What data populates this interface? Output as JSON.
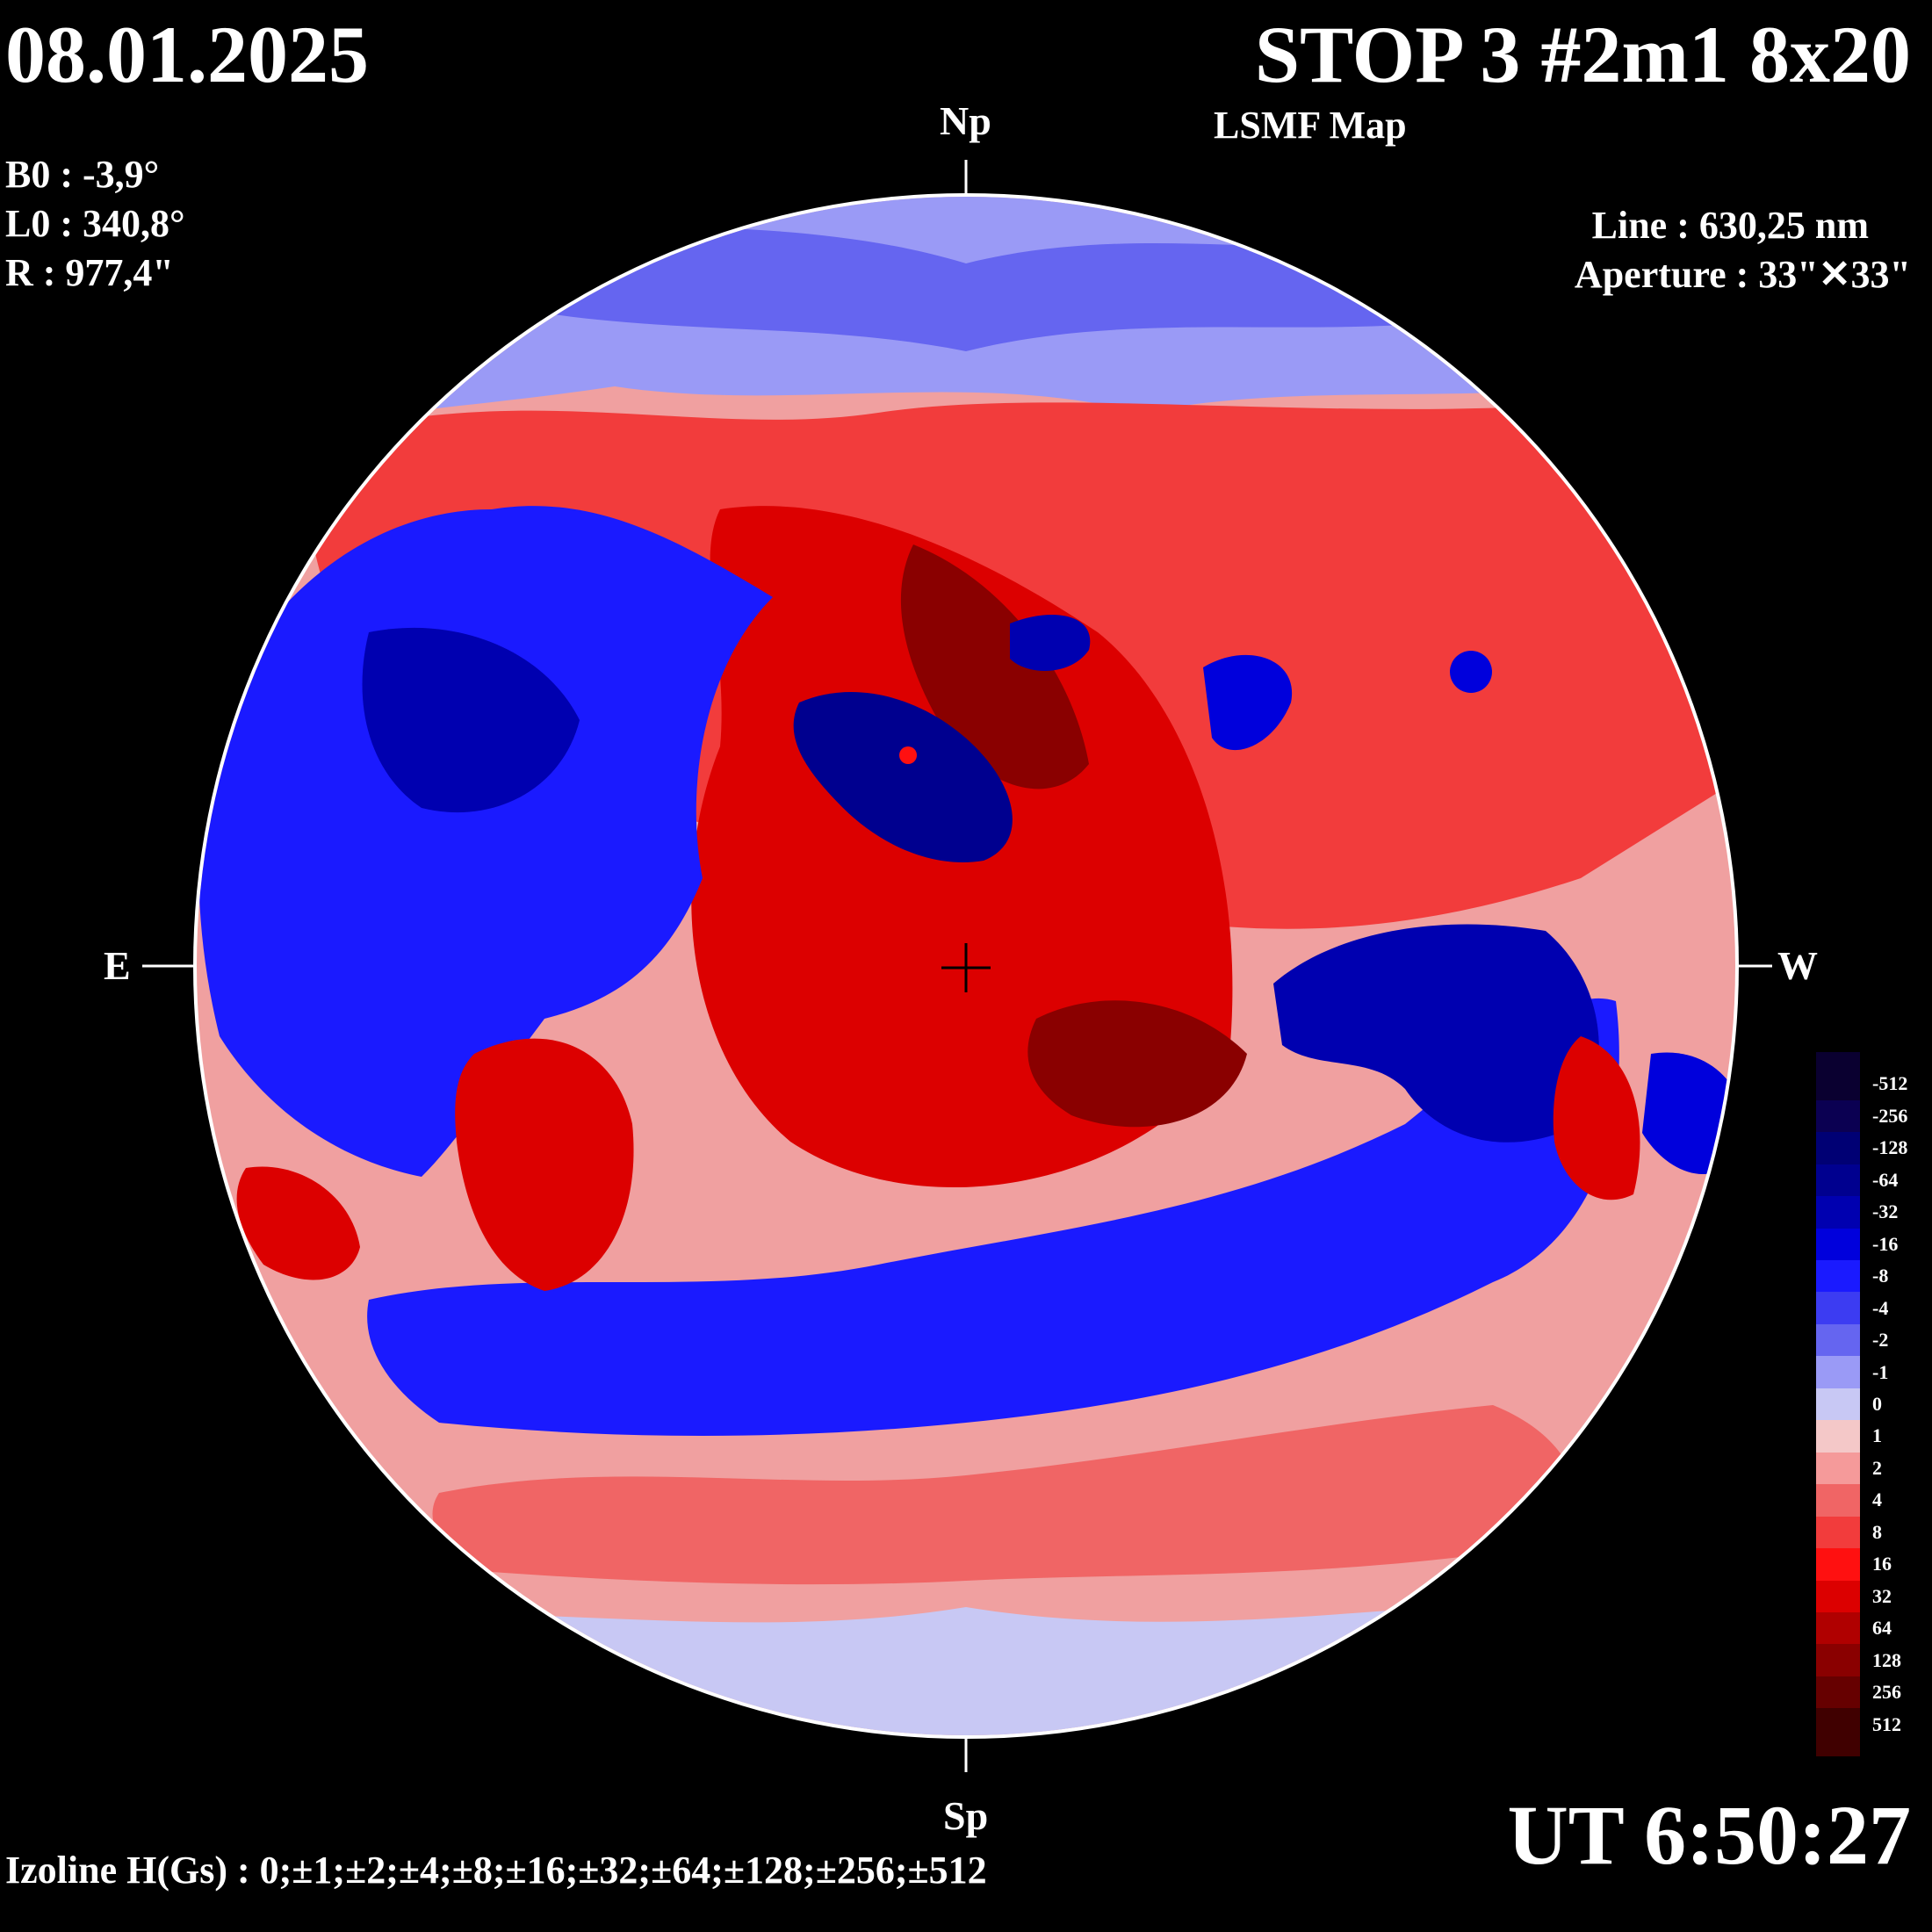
{
  "header": {
    "date": "08.01.2025",
    "title": "STOP 3 #2m1 8x20",
    "subtitle": "LSMF  Map"
  },
  "parameters": {
    "b0": "B0 : -3,9°",
    "l0": "L0 : 340,8°",
    "r": "R  : 977,4\""
  },
  "observation": {
    "line": "Line :  630,25 nm",
    "aperture": "Aperture : 33\"✕33\""
  },
  "directions": {
    "north": "Np",
    "south": "Sp",
    "east": "E",
    "west": "W"
  },
  "time": "UT 6:50:27",
  "izoline": "Izoline H(Gs) : 0;±1;±2;±4;±8;±16;±32;±64;±128;±256;±512",
  "legend": {
    "labels": [
      "-512",
      "-256",
      "-128",
      "-64",
      "-32",
      "-16",
      "-8",
      "-4",
      "-2",
      "-1",
      "0",
      "1",
      "2",
      "4",
      "8",
      "16",
      "32",
      "64",
      "128",
      "256",
      "512"
    ],
    "colors": [
      "#0a0030",
      "#0b0052",
      "#000074",
      "#00008f",
      "#0000b0",
      "#0000dc",
      "#1a1aff",
      "#3c3cf2",
      "#6565f0",
      "#9a9af6",
      "#c8c8f4",
      "#f4c8c8",
      "#f59a9a",
      "#f06565",
      "#f23c3c",
      "#ff1010",
      "#dc0000",
      "#b00000",
      "#8a0000",
      "#660000",
      "#400000"
    ]
  },
  "map_fields": {
    "negative": "#1010d8",
    "positive": "#e02020",
    "neutral_negative": "#a8a8f2",
    "neutral_positive": "#f4a8a8",
    "disk_background": "#f0a0a0",
    "contour": "#ffffff"
  }
}
